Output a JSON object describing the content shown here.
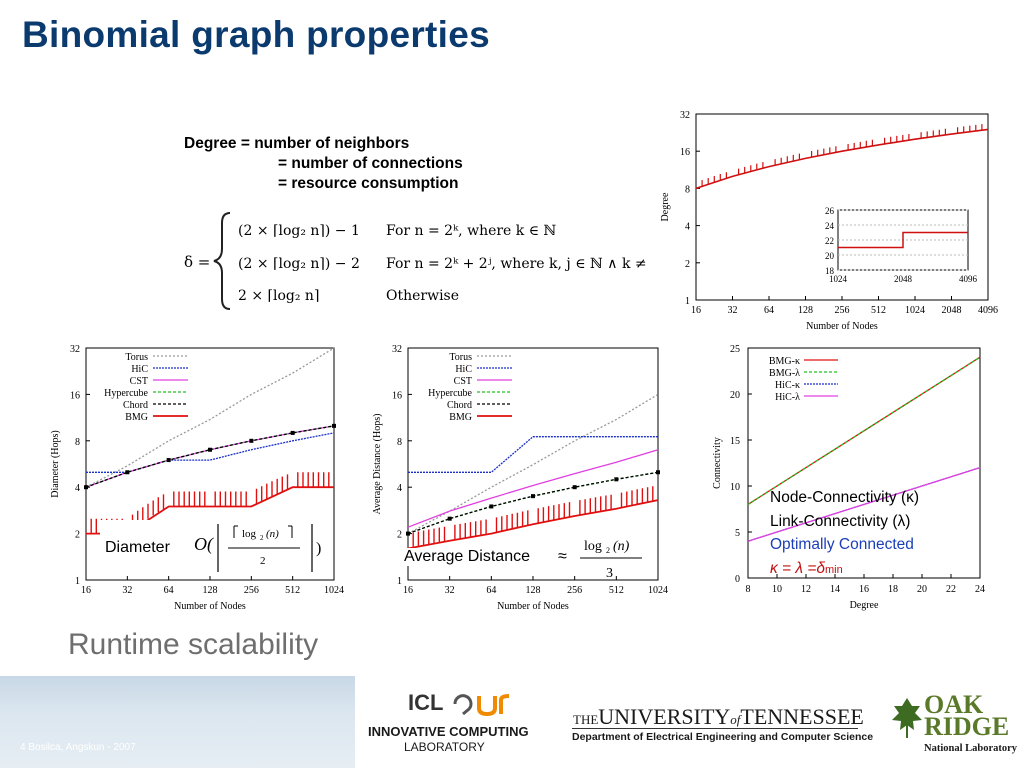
{
  "slide": {
    "title": "Binomial graph properties",
    "degree_def": {
      "line1": "Degree = number of neighbors",
      "line2": "= number of connections",
      "line3": "= resource consumption"
    },
    "formula": {
      "delta": "δ =",
      "cases": [
        {
          "expr": "(2 × ⌈log₂ n⌉) − 1",
          "cond": "For n = 2ᵏ, where k ∈ ℕ"
        },
        {
          "expr": "(2 × ⌈log₂ n⌉) − 2",
          "cond": "For n = 2ᵏ + 2ʲ, where k, j ∈ ℕ ∧ k ≠"
        },
        {
          "expr": "2 × ⌈log₂ n⌉",
          "cond": "Otherwise"
        }
      ]
    },
    "runtime": "Runtime scalability",
    "diameter_label": "Diameter",
    "avgdist_label": "Average Distance",
    "connectivity_notes": {
      "node": "Node-Connectivity (κ)",
      "link": "Link-Connectivity (λ)",
      "optimal": "Optimally Connected",
      "equation": "κ = λ =δ",
      "sub": "min"
    },
    "footer": {
      "small": "4 Bosilca, Angskun - 2007",
      "icl_logo": "ICL",
      "icl_line1": "INNOVATIVE COMPUTING",
      "icl_line2": "LABORATORY",
      "ut_the": "THE",
      "ut_university": "UNIVERSITY",
      "ut_of": "of",
      "ut_tennessee": "TENNESSEE",
      "ut_dept": "Department of Electrical Engineering and Computer Science",
      "ornl1": "OAK",
      "ornl2": "RIDGE",
      "ornl3": "National Laboratory"
    },
    "colors": {
      "title": "#0b3a6e",
      "optimal": "#1b3fb8",
      "kappa_eq": "#c01010",
      "footer": "#c8d8e6"
    }
  },
  "chart_data": [
    {
      "type": "line",
      "id": "degree_chart",
      "xlabel": "Number of Nodes",
      "ylabel": "Degree",
      "xticks": [
        "16",
        "32",
        "64",
        "128",
        "256",
        "512",
        "1024",
        "2048",
        "4096"
      ],
      "yticks": [
        "1",
        "2",
        "4",
        "8",
        "16",
        "32"
      ],
      "xscale": "log2",
      "yscale": "log2",
      "ylim": [
        1,
        32
      ],
      "series": [
        {
          "x": [
            16,
            32,
            64,
            128,
            256,
            512,
            1024,
            2048,
            4096
          ],
          "values": [
            8,
            10,
            12,
            14,
            16,
            18,
            20,
            22,
            24
          ]
        }
      ],
      "inset": {
        "xticks": [
          "1024",
          "2048",
          "4096"
        ],
        "yticks": [
          "18",
          "20",
          "22",
          "24",
          "26"
        ]
      }
    },
    {
      "type": "line",
      "id": "diameter_chart",
      "xlabel": "Number of Nodes",
      "ylabel": "Diameter (Hops)",
      "xticks": [
        "16",
        "32",
        "64",
        "128",
        "256",
        "512",
        "1024"
      ],
      "yticks": [
        "1",
        "2",
        "4",
        "8",
        "16",
        "32"
      ],
      "xscale": "log2",
      "yscale": "log2",
      "legend": [
        "Torus",
        "HiC",
        "CST",
        "Hypercube",
        "Chord",
        "BMG"
      ],
      "series": [
        {
          "name": "Torus",
          "x": [
            16,
            32,
            64,
            128,
            256,
            512,
            1024
          ],
          "values": [
            4,
            5.5,
            8,
            11,
            16,
            22,
            32
          ]
        },
        {
          "name": "HiC",
          "x": [
            16,
            32,
            64,
            128,
            256,
            512,
            1024
          ],
          "values": [
            5,
            5,
            6,
            6,
            7,
            8,
            9
          ]
        },
        {
          "name": "CST",
          "x": [
            16,
            32,
            64,
            128,
            256,
            512,
            1024
          ],
          "values": [
            4,
            5,
            6,
            7,
            8,
            9,
            10
          ]
        },
        {
          "name": "Hypercube",
          "x": [
            16,
            32,
            64,
            128,
            256,
            512,
            1024
          ],
          "values": [
            4,
            5,
            6,
            7,
            8,
            9,
            10
          ]
        },
        {
          "name": "Chord",
          "x": [
            16,
            32,
            64,
            128,
            256,
            512,
            1024
          ],
          "values": [
            4,
            5,
            6,
            7,
            8,
            9,
            10
          ]
        },
        {
          "name": "BMG",
          "x": [
            16,
            32,
            64,
            128,
            256,
            512,
            1024
          ],
          "values": [
            2,
            2,
            3,
            3,
            3,
            4,
            4
          ]
        }
      ]
    },
    {
      "type": "line",
      "id": "avgdist_chart",
      "xlabel": "Number of Nodes",
      "ylabel": "Average Distance (Hops)",
      "xticks": [
        "16",
        "32",
        "64",
        "128",
        "256",
        "512",
        "1024"
      ],
      "yticks": [
        "1",
        "2",
        "4",
        "8",
        "16",
        "32"
      ],
      "xscale": "log2",
      "yscale": "log2",
      "legend": [
        "Torus",
        "HiC",
        "CST",
        "Hypercube",
        "Chord",
        "BMG"
      ],
      "series": [
        {
          "name": "Torus",
          "x": [
            16,
            32,
            64,
            128,
            256,
            512,
            1024
          ],
          "values": [
            2,
            2.8,
            4,
            5.6,
            8,
            11,
            16
          ]
        },
        {
          "name": "HiC",
          "x": [
            16,
            32,
            64,
            128,
            256,
            512,
            1024
          ],
          "values": [
            5,
            5,
            5,
            8.5,
            8.5,
            8.5,
            8.5
          ]
        },
        {
          "name": "CST",
          "x": [
            16,
            32,
            64,
            128,
            256,
            512,
            1024
          ],
          "values": [
            2.2,
            2.8,
            3.4,
            4.1,
            4.9,
            5.8,
            7
          ]
        },
        {
          "name": "Hypercube",
          "x": [
            16,
            32,
            64,
            128,
            256,
            512,
            1024
          ],
          "values": [
            2,
            2.5,
            3,
            3.5,
            4,
            4.5,
            5
          ]
        },
        {
          "name": "Chord",
          "x": [
            16,
            32,
            64,
            128,
            256,
            512,
            1024
          ],
          "values": [
            2,
            2.5,
            3,
            3.5,
            4,
            4.5,
            5
          ]
        },
        {
          "name": "BMG",
          "x": [
            16,
            32,
            64,
            128,
            256,
            512,
            1024
          ],
          "values": [
            1.6,
            1.8,
            2,
            2.3,
            2.6,
            2.9,
            3.3
          ]
        }
      ]
    },
    {
      "type": "line",
      "id": "connectivity_chart",
      "xlabel": "Degree",
      "ylabel": "Connectivity",
      "xticks": [
        "8",
        "10",
        "12",
        "14",
        "16",
        "18",
        "20",
        "22",
        "24"
      ],
      "yticks": [
        "0",
        "5",
        "10",
        "15",
        "20",
        "25"
      ],
      "xlim": [
        8,
        24
      ],
      "ylim": [
        0,
        25
      ],
      "legend": [
        "BMG-κ",
        "BMG-λ",
        "HiC-κ",
        "HiC-λ"
      ],
      "series": [
        {
          "name": "BMG-κ",
          "x": [
            8,
            24
          ],
          "values": [
            8,
            24
          ]
        },
        {
          "name": "BMG-λ",
          "x": [
            8,
            24
          ],
          "values": [
            8,
            24
          ]
        },
        {
          "name": "HiC-κ",
          "x": [
            8,
            24
          ],
          "values": [
            4,
            12
          ]
        },
        {
          "name": "HiC-λ",
          "x": [
            8,
            24
          ],
          "values": [
            4,
            12
          ]
        }
      ]
    }
  ]
}
